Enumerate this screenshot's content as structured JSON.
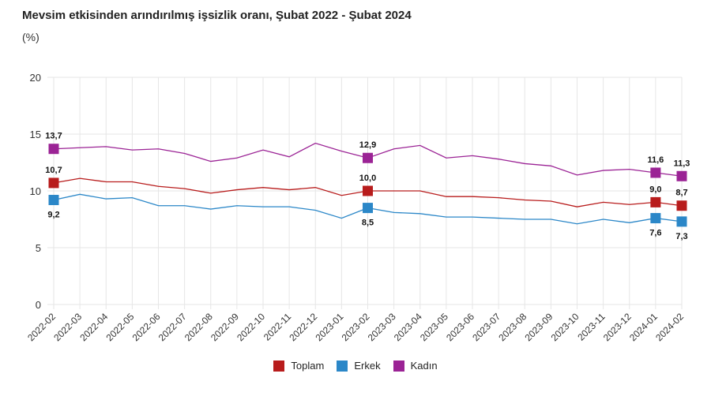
{
  "chart_data": {
    "type": "line",
    "title": "Mevsim etkisinden arındırılmış işsizlik oranı, Şubat 2022 - Şubat 2024",
    "subtitle": "(%)",
    "xlabel": "",
    "ylabel": "(%)",
    "ylim": [
      0,
      20
    ],
    "yticks": [
      "0",
      "5",
      "10",
      "15",
      "20"
    ],
    "ytick_values": [
      0,
      5,
      10,
      15,
      20
    ],
    "grid": true,
    "legend_position": "bottom-center",
    "categories": [
      "2022-02",
      "2022-03",
      "2022-04",
      "2022-05",
      "2022-06",
      "2022-07",
      "2022-08",
      "2022-09",
      "2022-10",
      "2022-11",
      "2022-12",
      "2023-01",
      "2023-02",
      "2023-03",
      "2023-04",
      "2023-05",
      "2023-06",
      "2023-07",
      "2023-08",
      "2023-09",
      "2023-10",
      "2023-11",
      "2023-12",
      "2024-01",
      "2024-02"
    ],
    "series": [
      {
        "name": "Toplam",
        "color": "#b81c1c",
        "values": [
          10.7,
          11.1,
          10.8,
          10.8,
          10.4,
          10.2,
          9.8,
          10.1,
          10.3,
          10.1,
          10.3,
          9.6,
          10.0,
          10.0,
          10.0,
          9.5,
          9.5,
          9.4,
          9.2,
          9.1,
          8.6,
          9.0,
          8.8,
          9.0,
          8.7
        ],
        "labeled_points": [
          {
            "index": 0,
            "label": "10,7",
            "position": "above"
          },
          {
            "index": 12,
            "label": "10,0",
            "position": "above"
          },
          {
            "index": 23,
            "label": "9,0",
            "position": "above"
          },
          {
            "index": 24,
            "label": "8,7",
            "position": "above"
          }
        ]
      },
      {
        "name": "Erkek",
        "color": "#2b87c8",
        "values": [
          9.2,
          9.7,
          9.3,
          9.4,
          8.7,
          8.7,
          8.4,
          8.7,
          8.6,
          8.6,
          8.3,
          7.6,
          8.5,
          8.1,
          8.0,
          7.7,
          7.7,
          7.6,
          7.5,
          7.5,
          7.1,
          7.5,
          7.2,
          7.6,
          7.3
        ],
        "labeled_points": [
          {
            "index": 0,
            "label": "9,2",
            "position": "below"
          },
          {
            "index": 12,
            "label": "8,5",
            "position": "below"
          },
          {
            "index": 23,
            "label": "7,6",
            "position": "below"
          },
          {
            "index": 24,
            "label": "7,3",
            "position": "below"
          }
        ]
      },
      {
        "name": "Kadın",
        "color": "#9b2395",
        "values": [
          13.7,
          13.8,
          13.9,
          13.6,
          13.7,
          13.3,
          12.6,
          12.9,
          13.6,
          13.0,
          14.2,
          13.5,
          12.9,
          13.7,
          14.0,
          12.9,
          13.1,
          12.8,
          12.4,
          12.2,
          11.4,
          11.8,
          11.9,
          11.6,
          11.3
        ],
        "labeled_points": [
          {
            "index": 0,
            "label": "13,7",
            "position": "above"
          },
          {
            "index": 12,
            "label": "12,9",
            "position": "above"
          },
          {
            "index": 23,
            "label": "11,6",
            "position": "above"
          },
          {
            "index": 24,
            "label": "11,3",
            "position": "above"
          }
        ]
      }
    ]
  }
}
